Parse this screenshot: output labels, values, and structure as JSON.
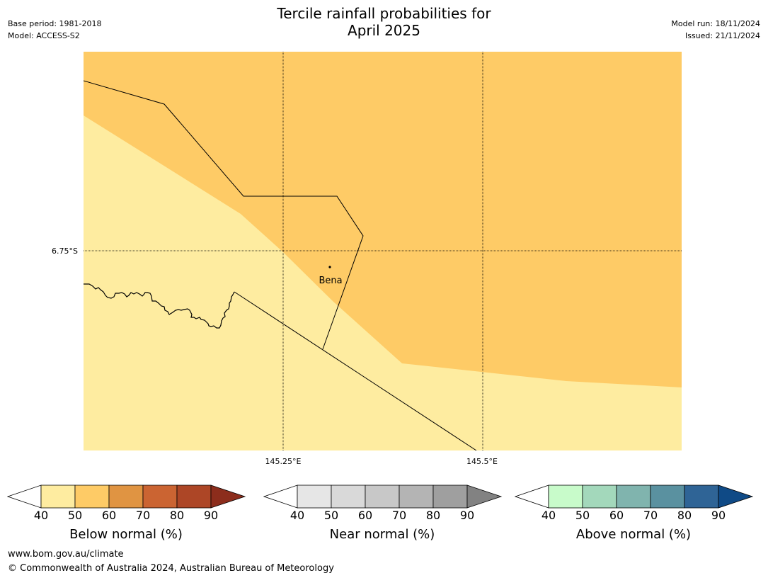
{
  "header": {
    "title_line1": "Tercile rainfall probabilities for",
    "title_line2": "April 2025",
    "base_period": "Base period: 1981-2018",
    "model": "Model: ACCESS-S2",
    "model_run": "Model run: 18/11/2024",
    "issued": "Issued: 21/11/2024"
  },
  "map": {
    "lat_label": "6.75°S",
    "lon_labels": [
      "145.25°E",
      "145.5°E"
    ],
    "place_label": "Bena",
    "colors": {
      "below_40_50": "#feeca0",
      "below_50_60": "#fecb66",
      "line": "#000000"
    }
  },
  "legends": [
    {
      "title": "Below normal (%)",
      "ticks": [
        "40",
        "50",
        "60",
        "70",
        "80",
        "90"
      ],
      "colors": [
        "#ffffff",
        "#feeca0",
        "#fecb66",
        "#e09442",
        "#cb6432",
        "#ad4626",
        "#8c2d1c"
      ]
    },
    {
      "title": "Near normal (%)",
      "ticks": [
        "40",
        "50",
        "60",
        "70",
        "80",
        "90"
      ],
      "colors": [
        "#ffffff",
        "#e6e6e6",
        "#d9d9d9",
        "#c8c8c8",
        "#b4b4b4",
        "#9f9f9f",
        "#828282"
      ]
    },
    {
      "title": "Above normal (%)",
      "ticks": [
        "40",
        "50",
        "60",
        "70",
        "80",
        "90"
      ],
      "colors": [
        "#ffffff",
        "#c8fbca",
        "#a3d8bb",
        "#80b4ae",
        "#5a91a0",
        "#2f6496",
        "#0f4a86"
      ]
    }
  ],
  "footer": {
    "url": "www.bom.gov.au/climate",
    "copyright": "© Commonwealth of Australia 2024, Australian Bureau of Meteorology"
  }
}
